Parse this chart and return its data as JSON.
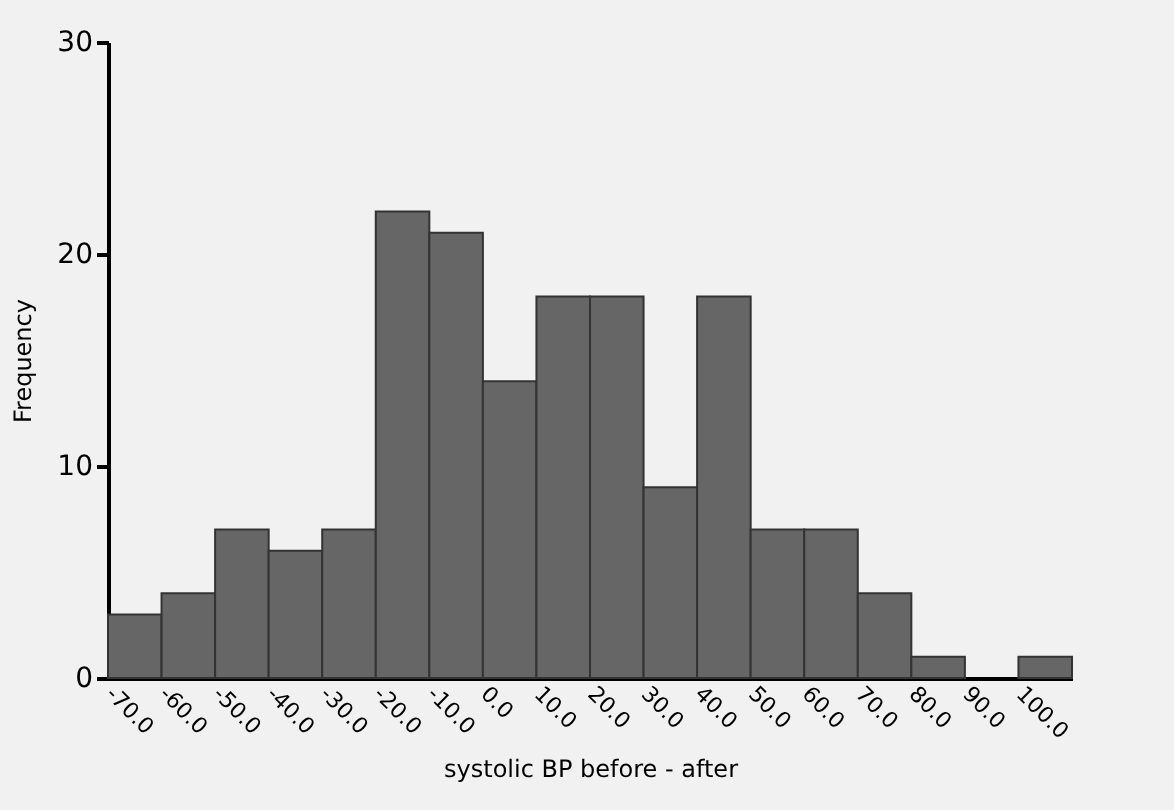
{
  "chart_data": {
    "type": "histogram",
    "xlabel": "systolic BP before - after",
    "ylabel": "Frequency",
    "bins": [
      -70,
      -60,
      -50,
      -40,
      -30,
      -20,
      -10,
      0,
      10,
      20,
      30,
      40,
      50,
      60,
      70,
      80,
      90,
      100,
      110
    ],
    "values": [
      3,
      4,
      7,
      6,
      7,
      22,
      21,
      14,
      18,
      18,
      9,
      18,
      7,
      7,
      4,
      1,
      0,
      1
    ],
    "color": "#666666",
    "xlim": [
      -70,
      110
    ],
    "xticks": [
      {
        "value": -70,
        "label": "-70.0"
      },
      {
        "value": -60,
        "label": "-60.0"
      },
      {
        "value": -50,
        "label": "-50.0"
      },
      {
        "value": -40,
        "label": "-40.0"
      },
      {
        "value": -30,
        "label": "-30.0"
      },
      {
        "value": -20,
        "label": "-20.0"
      },
      {
        "value": -10,
        "label": "-10.0"
      },
      {
        "value": 0,
        "label": "0.0"
      },
      {
        "value": 10,
        "label": "10.0"
      },
      {
        "value": 20,
        "label": "20.0"
      },
      {
        "value": 30,
        "label": "30.0"
      },
      {
        "value": 40,
        "label": "40.0"
      },
      {
        "value": 50,
        "label": "50.0"
      },
      {
        "value": 60,
        "label": "60.0"
      },
      {
        "value": 70,
        "label": "70.0"
      },
      {
        "value": 80,
        "label": "80.0"
      },
      {
        "value": 90,
        "label": "90.0"
      },
      {
        "value": 100,
        "label": "100.0"
      }
    ],
    "ylim": [
      0,
      30
    ],
    "yticks": [
      0,
      10,
      20,
      30
    ],
    "grid": false
  }
}
